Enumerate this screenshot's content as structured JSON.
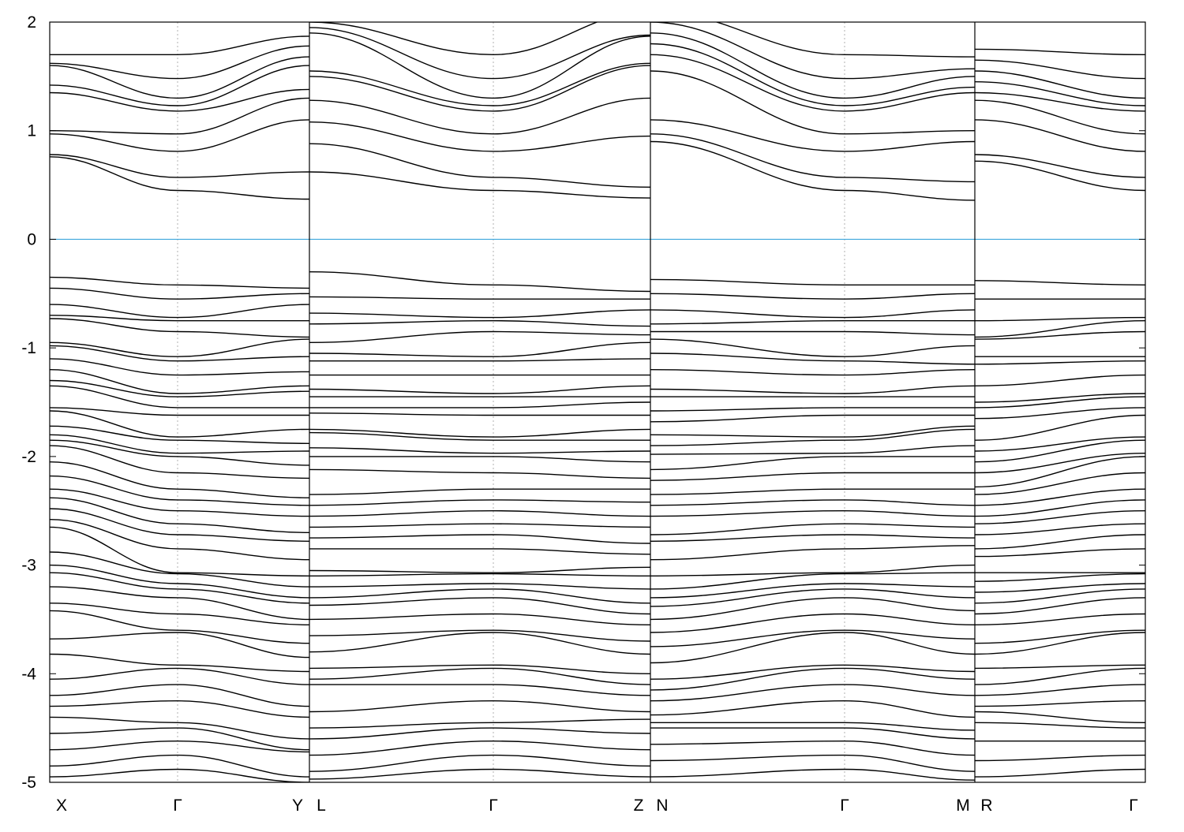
{
  "chart_data": {
    "type": "line",
    "title": "",
    "xlabel": "",
    "ylabel": "",
    "ylim": [
      -5,
      2
    ],
    "yticks": [
      "2",
      "1",
      "0",
      "-1",
      "-2",
      "-3",
      "-4",
      "-5"
    ],
    "ytick_values": [
      2,
      1,
      0,
      -1,
      -2,
      -3,
      -4,
      -5
    ],
    "xtick_labels": [
      "X",
      "Γ",
      "Y",
      "L",
      "Γ",
      "Z",
      "N",
      "Γ",
      "M",
      "R",
      "Γ"
    ],
    "fermi_level": 0,
    "colors": {
      "bands": "#000000",
      "fermi": "#3fa7dd",
      "grid": "#b0b0b0"
    },
    "grid": "vertical dotted at high-symmetry points",
    "segments": [
      {
        "path": [
          "X",
          "Γ",
          "Y"
        ],
        "conduction": [
          [
            0.76,
            0.78,
            0.97,
            1.0,
            1.35,
            1.42,
            1.6,
            1.62,
            1.7
          ],
          [
            0.45,
            0.57,
            0.81,
            0.97,
            1.18,
            1.23,
            1.3,
            1.48,
            1.7
          ],
          [
            0.37,
            0.62,
            1.1,
            1.3,
            1.38,
            1.6,
            1.68,
            1.78,
            1.87
          ]
        ],
        "valence": [
          [
            -0.35,
            -0.45,
            -0.6,
            -0.7,
            -0.73,
            -0.95,
            -0.98,
            -1.1,
            -1.2,
            -1.3,
            -1.35,
            -1.55,
            -1.58,
            -1.72,
            -1.8,
            -1.85,
            -1.9,
            -2.05,
            -2.18,
            -2.3,
            -2.38,
            -2.48,
            -2.58,
            -2.65,
            -2.88,
            -3.0,
            -3.07,
            -3.2,
            -3.35,
            -3.42,
            -3.68,
            -3.82,
            -4.05,
            -4.2,
            -4.3,
            -4.4,
            -4.55,
            -4.7,
            -4.85,
            -4.95
          ],
          [
            -0.42,
            -0.55,
            -0.72,
            -0.75,
            -0.85,
            -1.08,
            -1.12,
            -1.25,
            -1.42,
            -1.45,
            -1.55,
            -1.62,
            -1.82,
            -1.85,
            -1.97,
            -2.0,
            -2.15,
            -2.3,
            -2.4,
            -2.5,
            -2.62,
            -2.72,
            -2.85,
            -3.07,
            -3.08,
            -3.17,
            -3.22,
            -3.3,
            -3.45,
            -3.6,
            -3.62,
            -3.92,
            -3.95,
            -4.1,
            -4.25,
            -4.45,
            -4.5,
            -4.62,
            -4.75,
            -4.88
          ],
          [
            -0.45,
            -0.5,
            -0.6,
            -0.75,
            -0.9,
            -0.92,
            -1.08,
            -1.22,
            -1.35,
            -1.4,
            -1.55,
            -1.62,
            -1.75,
            -1.88,
            -1.95,
            -2.08,
            -2.2,
            -2.38,
            -2.45,
            -2.55,
            -2.7,
            -2.78,
            -2.95,
            -3.1,
            -3.2,
            -3.3,
            -3.35,
            -3.5,
            -3.55,
            -3.72,
            -3.85,
            -3.98,
            -4.1,
            -4.3,
            -4.4,
            -4.6,
            -4.7,
            -4.72,
            -4.95,
            -5.0
          ]
        ]
      },
      {
        "path": [
          "L",
          "Γ",
          "Z"
        ],
        "conduction": [
          [
            0.62,
            0.88,
            1.08,
            1.28,
            1.5,
            1.55,
            1.9,
            1.95,
            2.0
          ],
          [
            0.45,
            0.57,
            0.81,
            0.97,
            1.18,
            1.23,
            1.3,
            1.48,
            1.7
          ],
          [
            0.38,
            0.48,
            0.95,
            1.3,
            1.6,
            1.62,
            1.87,
            1.88,
            2.1
          ]
        ],
        "valence": [
          [
            -0.3,
            -0.53,
            -0.68,
            -0.78,
            -0.95,
            -1.05,
            -1.12,
            -1.25,
            -1.38,
            -1.45,
            -1.55,
            -1.6,
            -1.75,
            -1.78,
            -1.92,
            -2.0,
            -2.12,
            -2.35,
            -2.45,
            -2.55,
            -2.65,
            -2.75,
            -2.85,
            -3.05,
            -3.1,
            -3.2,
            -3.3,
            -3.37,
            -3.5,
            -3.65,
            -3.8,
            -3.95,
            -4.05,
            -4.1,
            -4.35,
            -4.5,
            -4.6,
            -4.75,
            -4.9,
            -4.97
          ],
          [
            -0.42,
            -0.55,
            -0.72,
            -0.75,
            -0.85,
            -1.08,
            -1.12,
            -1.25,
            -1.42,
            -1.45,
            -1.55,
            -1.62,
            -1.82,
            -1.85,
            -1.97,
            -2.0,
            -2.15,
            -2.3,
            -2.4,
            -2.5,
            -2.62,
            -2.72,
            -2.85,
            -3.07,
            -3.08,
            -3.17,
            -3.22,
            -3.3,
            -3.45,
            -3.6,
            -3.62,
            -3.92,
            -3.95,
            -4.1,
            -4.25,
            -4.45,
            -4.5,
            -4.62,
            -4.75,
            -4.88
          ],
          [
            -0.48,
            -0.55,
            -0.65,
            -0.8,
            -0.88,
            -0.95,
            -1.1,
            -1.25,
            -1.35,
            -1.45,
            -1.5,
            -1.62,
            -1.75,
            -1.85,
            -1.95,
            -2.05,
            -2.2,
            -2.3,
            -2.42,
            -2.55,
            -2.65,
            -2.8,
            -2.9,
            -3.02,
            -3.1,
            -3.22,
            -3.35,
            -3.45,
            -3.55,
            -3.7,
            -3.82,
            -4.0,
            -4.1,
            -4.2,
            -4.35,
            -4.42,
            -4.55,
            -4.7,
            -4.85,
            -4.95
          ]
        ]
      },
      {
        "path": [
          "N",
          "Γ",
          "M"
        ],
        "conduction": [
          [
            0.9,
            0.97,
            1.1,
            1.55,
            1.7,
            1.8,
            1.9,
            2.0,
            2.1
          ],
          [
            0.45,
            0.57,
            0.81,
            0.97,
            1.18,
            1.23,
            1.3,
            1.48,
            1.7
          ],
          [
            0.36,
            0.53,
            0.9,
            1.0,
            1.35,
            1.4,
            1.5,
            1.57,
            1.68
          ]
        ],
        "valence": [
          [
            -0.37,
            -0.5,
            -0.65,
            -0.78,
            -0.85,
            -0.92,
            -1.05,
            -1.2,
            -1.38,
            -1.45,
            -1.58,
            -1.68,
            -1.8,
            -1.9,
            -1.98,
            -2.12,
            -2.22,
            -2.35,
            -2.45,
            -2.55,
            -2.72,
            -2.78,
            -2.95,
            -3.1,
            -3.22,
            -3.3,
            -3.38,
            -3.5,
            -3.62,
            -3.75,
            -3.9,
            -4.05,
            -4.15,
            -4.25,
            -4.38,
            -4.45,
            -4.5,
            -4.65,
            -4.8,
            -4.95
          ],
          [
            -0.42,
            -0.55,
            -0.72,
            -0.75,
            -0.85,
            -1.08,
            -1.12,
            -1.25,
            -1.42,
            -1.45,
            -1.55,
            -1.62,
            -1.82,
            -1.85,
            -1.97,
            -2.0,
            -2.15,
            -2.3,
            -2.4,
            -2.5,
            -2.62,
            -2.72,
            -2.85,
            -3.07,
            -3.08,
            -3.17,
            -3.22,
            -3.3,
            -3.45,
            -3.6,
            -3.62,
            -3.92,
            -3.95,
            -4.1,
            -4.25,
            -4.45,
            -4.5,
            -4.62,
            -4.75,
            -4.88
          ],
          [
            -0.42,
            -0.5,
            -0.65,
            -0.75,
            -0.88,
            -0.98,
            -1.15,
            -1.2,
            -1.35,
            -1.45,
            -1.55,
            -1.62,
            -1.72,
            -1.75,
            -1.9,
            -2.0,
            -2.15,
            -2.3,
            -2.45,
            -2.55,
            -2.65,
            -2.75,
            -2.82,
            -3.0,
            -3.07,
            -3.2,
            -3.3,
            -3.42,
            -3.55,
            -3.68,
            -3.82,
            -3.98,
            -4.05,
            -4.2,
            -4.4,
            -4.52,
            -4.6,
            -4.75,
            -4.9,
            -4.98
          ]
        ]
      },
      {
        "path": [
          "R",
          "Γ"
        ],
        "conduction": [
          [
            0.72,
            0.78,
            1.1,
            1.28,
            1.35,
            1.45,
            1.55,
            1.65,
            1.75
          ],
          [
            0.45,
            0.57,
            0.81,
            0.97,
            1.18,
            1.23,
            1.3,
            1.48,
            1.7
          ]
        ],
        "valence": [
          [
            -0.38,
            -0.55,
            -0.75,
            -0.9,
            -0.92,
            -1.08,
            -1.15,
            -1.35,
            -1.5,
            -1.55,
            -1.65,
            -1.85,
            -1.95,
            -2.05,
            -2.15,
            -2.28,
            -2.35,
            -2.45,
            -2.55,
            -2.62,
            -2.72,
            -2.85,
            -2.92,
            -3.07,
            -3.15,
            -3.25,
            -3.35,
            -3.45,
            -3.55,
            -3.72,
            -3.82,
            -3.95,
            -4.1,
            -4.2,
            -4.3,
            -4.35,
            -4.45,
            -4.62,
            -4.8,
            -4.95
          ],
          [
            -0.42,
            -0.55,
            -0.72,
            -0.75,
            -0.85,
            -1.08,
            -1.12,
            -1.25,
            -1.42,
            -1.45,
            -1.55,
            -1.62,
            -1.82,
            -1.85,
            -1.97,
            -2.0,
            -2.15,
            -2.3,
            -2.4,
            -2.5,
            -2.62,
            -2.72,
            -2.85,
            -3.07,
            -3.08,
            -3.17,
            -3.22,
            -3.3,
            -3.45,
            -3.6,
            -3.62,
            -3.92,
            -3.95,
            -4.1,
            -4.25,
            -4.45,
            -4.5,
            -4.62,
            -4.75,
            -4.88
          ]
        ]
      }
    ]
  }
}
